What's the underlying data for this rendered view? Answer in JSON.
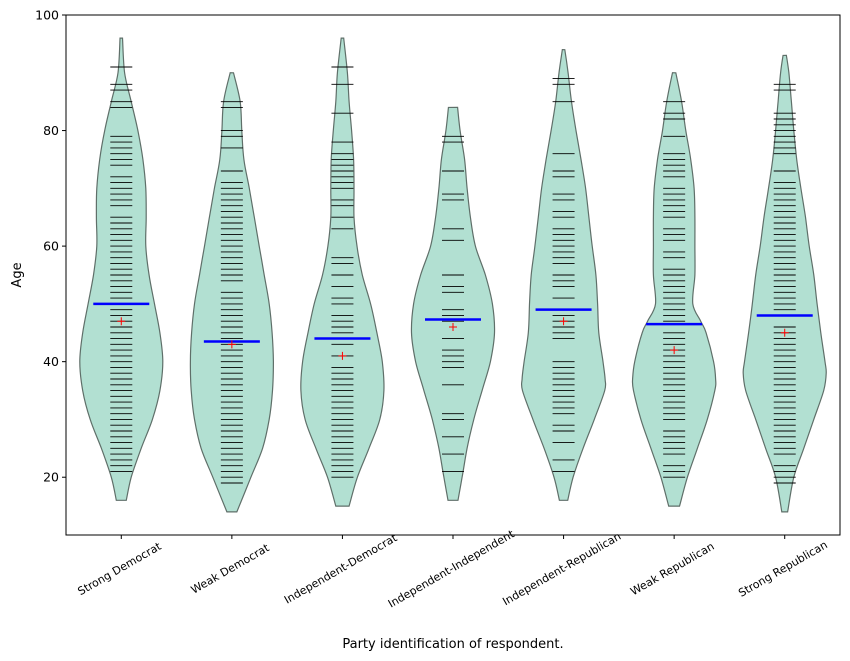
{
  "chart_data": {
    "type": "violin",
    "xlabel": "Party identification of respondent.",
    "ylabel": "Age",
    "ylim": [
      10,
      100
    ],
    "yticks": [
      20,
      40,
      60,
      80,
      100
    ],
    "grid": false,
    "colors": {
      "fill": "#b2e0d2",
      "edge": "#5f6f69",
      "median": "#0000ff",
      "mean": "#ff0000",
      "obs": "#000000"
    },
    "categories": [
      {
        "label": "Strong Democrat",
        "min": 16,
        "max": 96,
        "median": 50,
        "mean": 47,
        "density": [
          [
            16,
            0.12
          ],
          [
            20,
            0.24
          ],
          [
            25,
            0.48
          ],
          [
            30,
            0.75
          ],
          [
            35,
            0.93
          ],
          [
            40,
            1.0
          ],
          [
            45,
            0.93
          ],
          [
            50,
            0.8
          ],
          [
            55,
            0.67
          ],
          [
            60,
            0.59
          ],
          [
            65,
            0.6
          ],
          [
            70,
            0.59
          ],
          [
            75,
            0.52
          ],
          [
            80,
            0.4
          ],
          [
            85,
            0.24
          ],
          [
            90,
            0.08
          ],
          [
            96,
            0.03
          ]
        ],
        "observations": [
          91,
          88,
          87,
          85,
          84,
          79,
          78,
          77,
          76,
          75,
          74,
          72,
          71,
          70,
          69,
          68,
          67,
          65,
          64,
          63,
          62,
          61,
          60,
          59,
          58,
          57,
          56,
          55,
          54,
          53,
          52,
          51,
          50,
          49,
          48,
          47,
          46,
          45,
          44,
          43,
          42,
          41,
          40,
          39,
          38,
          37,
          36,
          35,
          34,
          33,
          32,
          31,
          30,
          29,
          28,
          27,
          26,
          25,
          24,
          23,
          22,
          21
        ]
      },
      {
        "label": "Weak Democrat",
        "min": 14,
        "max": 90,
        "median": 43.5,
        "mean": 43,
        "density": [
          [
            14,
            0.12
          ],
          [
            20,
            0.46
          ],
          [
            25,
            0.74
          ],
          [
            30,
            0.9
          ],
          [
            35,
            0.98
          ],
          [
            40,
            1.0
          ],
          [
            45,
            0.97
          ],
          [
            50,
            0.9
          ],
          [
            55,
            0.78
          ],
          [
            60,
            0.66
          ],
          [
            65,
            0.54
          ],
          [
            70,
            0.42
          ],
          [
            75,
            0.29
          ],
          [
            80,
            0.24
          ],
          [
            85,
            0.2
          ],
          [
            90,
            0.04
          ]
        ],
        "observations": [
          85,
          84,
          80,
          79,
          77,
          73,
          71,
          70,
          69,
          68,
          67,
          66,
          65,
          64,
          63,
          62,
          61,
          60,
          59,
          58,
          57,
          56,
          55,
          54,
          52,
          51,
          50,
          49,
          48,
          47,
          46,
          45,
          44,
          43,
          42,
          41,
          40,
          39,
          38,
          37,
          36,
          35,
          34,
          33,
          32,
          31,
          30,
          29,
          28,
          27,
          26,
          25,
          24,
          23,
          22,
          21,
          20,
          19
        ]
      },
      {
        "label": "Independent-Democrat",
        "min": 15,
        "max": 96,
        "median": 44,
        "mean": 41,
        "density": [
          [
            15,
            0.16
          ],
          [
            20,
            0.36
          ],
          [
            25,
            0.64
          ],
          [
            30,
            0.9
          ],
          [
            35,
            1.0
          ],
          [
            40,
            0.96
          ],
          [
            45,
            0.83
          ],
          [
            50,
            0.68
          ],
          [
            55,
            0.48
          ],
          [
            60,
            0.35
          ],
          [
            65,
            0.28
          ],
          [
            70,
            0.28
          ],
          [
            75,
            0.27
          ],
          [
            80,
            0.22
          ],
          [
            85,
            0.16
          ],
          [
            90,
            0.12
          ],
          [
            96,
            0.03
          ]
        ],
        "observations": [
          91,
          88,
          83,
          78,
          76,
          75,
          74,
          73,
          72,
          71,
          70,
          68,
          67,
          65,
          63,
          58,
          57,
          55,
          53,
          51,
          50,
          48,
          47,
          46,
          45,
          43,
          41,
          39,
          38,
          37,
          36,
          35,
          34,
          33,
          32,
          31,
          30,
          29,
          28,
          27,
          26,
          25,
          24,
          23,
          22,
          21,
          20
        ]
      },
      {
        "label": "Independent-Independent",
        "min": 16,
        "max": 84,
        "median": 47.3,
        "mean": 46,
        "density": [
          [
            16,
            0.12
          ],
          [
            20,
            0.22
          ],
          [
            25,
            0.34
          ],
          [
            30,
            0.5
          ],
          [
            35,
            0.7
          ],
          [
            40,
            0.9
          ],
          [
            45,
            1.0
          ],
          [
            50,
            0.95
          ],
          [
            55,
            0.78
          ],
          [
            60,
            0.54
          ],
          [
            65,
            0.42
          ],
          [
            70,
            0.34
          ],
          [
            75,
            0.28
          ],
          [
            80,
            0.17
          ],
          [
            84,
            0.11
          ]
        ],
        "observations": [
          79,
          78,
          73,
          69,
          68,
          63,
          61,
          55,
          53,
          52,
          49,
          48,
          47,
          44,
          42,
          41,
          40,
          39,
          36,
          31,
          30,
          27,
          24,
          21
        ]
      },
      {
        "label": "Independent-Republican",
        "min": 16,
        "max": 94,
        "median": 49,
        "mean": 47,
        "density": [
          [
            16,
            0.1
          ],
          [
            20,
            0.23
          ],
          [
            25,
            0.47
          ],
          [
            30,
            0.74
          ],
          [
            35,
            0.99
          ],
          [
            37,
            1.0
          ],
          [
            40,
            0.95
          ],
          [
            45,
            0.85
          ],
          [
            50,
            0.82
          ],
          [
            55,
            0.78
          ],
          [
            60,
            0.69
          ],
          [
            65,
            0.61
          ],
          [
            70,
            0.53
          ],
          [
            75,
            0.42
          ],
          [
            80,
            0.3
          ],
          [
            85,
            0.19
          ],
          [
            90,
            0.11
          ],
          [
            94,
            0.03
          ]
        ],
        "observations": [
          89,
          88,
          85,
          76,
          73,
          72,
          69,
          68,
          66,
          65,
          63,
          62,
          61,
          60,
          59,
          58,
          57,
          55,
          54,
          53,
          51,
          49,
          48,
          47,
          46,
          45,
          44,
          40,
          39,
          38,
          37,
          36,
          35,
          34,
          33,
          32,
          31,
          29,
          28,
          26,
          23,
          21
        ]
      },
      {
        "label": "Weak Republican",
        "min": 15,
        "max": 90,
        "median": 46.5,
        "mean": 42,
        "density": [
          [
            15,
            0.13
          ],
          [
            20,
            0.32
          ],
          [
            25,
            0.56
          ],
          [
            30,
            0.8
          ],
          [
            35,
            0.98
          ],
          [
            37,
            1.0
          ],
          [
            40,
            0.95
          ],
          [
            45,
            0.77
          ],
          [
            47,
            0.64
          ],
          [
            50,
            0.45
          ],
          [
            55,
            0.5
          ],
          [
            60,
            0.5
          ],
          [
            65,
            0.5
          ],
          [
            70,
            0.48
          ],
          [
            75,
            0.4
          ],
          [
            80,
            0.28
          ],
          [
            85,
            0.18
          ],
          [
            90,
            0.04
          ]
        ],
        "observations": [
          85,
          83,
          82,
          79,
          76,
          75,
          74,
          73,
          72,
          70,
          69,
          68,
          67,
          66,
          65,
          63,
          62,
          61,
          59,
          58,
          56,
          55,
          54,
          53,
          52,
          51,
          50,
          49,
          48,
          47,
          45,
          44,
          43,
          42,
          41,
          40,
          39,
          38,
          37,
          36,
          35,
          34,
          33,
          32,
          31,
          30,
          28,
          27,
          26,
          25,
          24,
          22,
          21,
          20
        ]
      },
      {
        "label": "Strong Republican",
        "min": 14,
        "max": 93,
        "median": 48,
        "mean": 45,
        "density": [
          [
            14,
            0.07
          ],
          [
            20,
            0.22
          ],
          [
            25,
            0.46
          ],
          [
            30,
            0.7
          ],
          [
            35,
            0.94
          ],
          [
            38,
            1.0
          ],
          [
            40,
            0.97
          ],
          [
            45,
            0.87
          ],
          [
            50,
            0.78
          ],
          [
            55,
            0.7
          ],
          [
            60,
            0.59
          ],
          [
            65,
            0.5
          ],
          [
            70,
            0.39
          ],
          [
            75,
            0.29
          ],
          [
            80,
            0.22
          ],
          [
            85,
            0.16
          ],
          [
            90,
            0.1
          ],
          [
            93,
            0.04
          ]
        ],
        "observations": [
          88,
          87,
          83,
          82,
          81,
          80,
          79,
          78,
          77,
          76,
          73,
          71,
          70,
          69,
          68,
          67,
          66,
          65,
          64,
          63,
          62,
          61,
          60,
          59,
          58,
          57,
          56,
          55,
          54,
          53,
          52,
          51,
          50,
          49,
          46,
          45,
          44,
          43,
          42,
          41,
          40,
          39,
          38,
          37,
          36,
          35,
          34,
          33,
          32,
          31,
          30,
          29,
          28,
          27,
          26,
          25,
          24,
          22,
          21,
          20,
          19
        ]
      }
    ]
  }
}
